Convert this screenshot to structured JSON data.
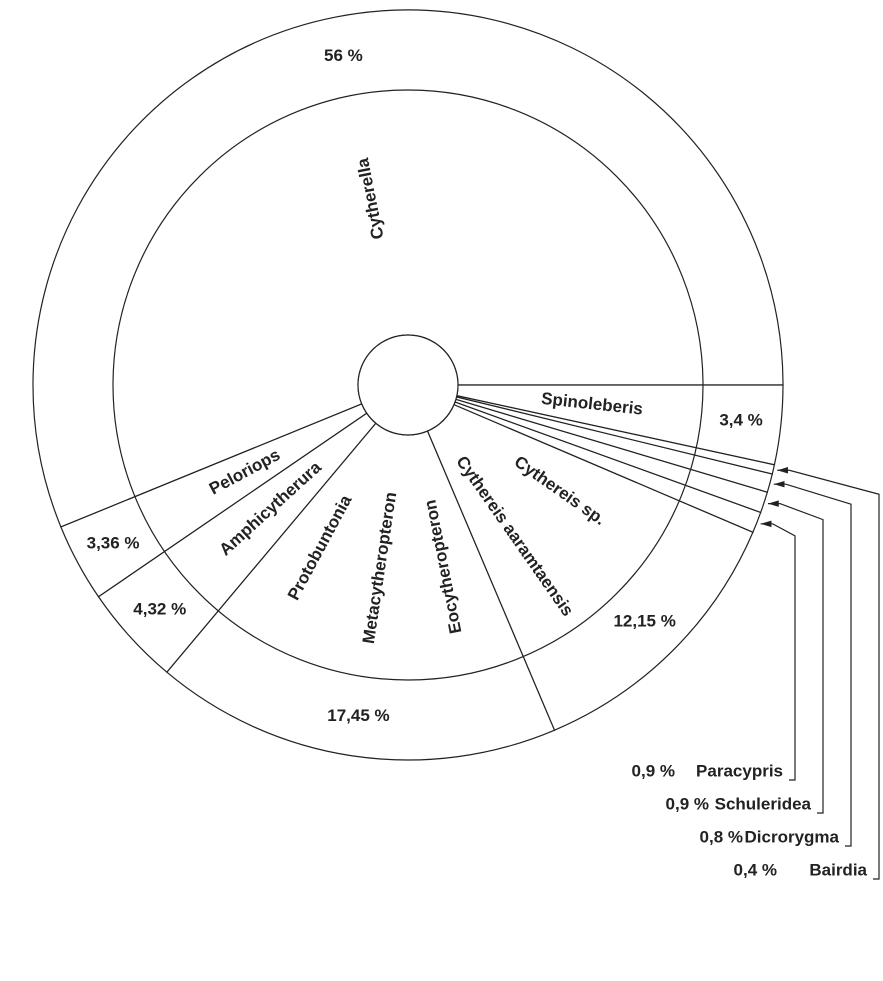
{
  "chart_data": {
    "type": "pie",
    "slices": [
      {
        "names": [
          "Cytherella"
        ],
        "value": 56,
        "value_label": "56 %"
      },
      {
        "names": [
          "Peloriops"
        ],
        "value": 3.36,
        "value_label": "3,36 %"
      },
      {
        "names": [
          "Amphicytherura"
        ],
        "value": 4.32,
        "value_label": "4,32 %"
      },
      {
        "names": [
          "Protobuntonia",
          "Metacytheropteron",
          "Eocytheropteron"
        ],
        "value": 17.45,
        "value_label": "17,45 %"
      },
      {
        "names": [
          "Cythereis aaramtaensis",
          "Cythereis sp."
        ],
        "value": 12.15,
        "value_label": "12,15 %"
      },
      {
        "names": [
          "Paracypris"
        ],
        "value": 0.9,
        "value_label": "0,9 %",
        "callout": true
      },
      {
        "names": [
          "Schuleridea"
        ],
        "value": 0.9,
        "value_label": "0,9 %",
        "callout": true
      },
      {
        "names": [
          "Dicrorygma"
        ],
        "value": 0.8,
        "value_label": "0,8 %",
        "callout": true
      },
      {
        "names": [
          "Bairdia"
        ],
        "value": 0.4,
        "value_label": "0,4 %",
        "callout": true
      },
      {
        "names": [
          "Spinoleberis"
        ],
        "value": 3.4,
        "value_label": "3,4 %"
      }
    ]
  }
}
